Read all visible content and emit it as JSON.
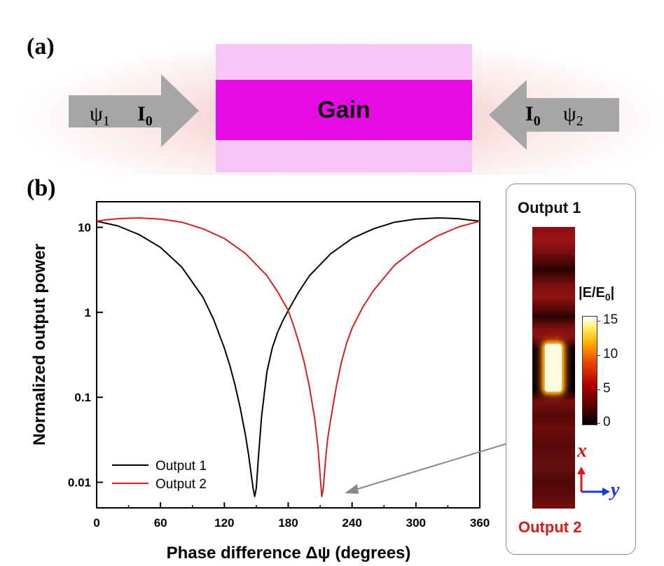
{
  "figure": {
    "panel_a_label": "(a)",
    "panel_b_label": "(b)"
  },
  "schematic": {
    "gain_label": "Gain",
    "left_beam": {
      "phase": "ψ",
      "phase_sub": "1",
      "intensity": "I",
      "intensity_sub": "0"
    },
    "right_beam": {
      "phase": "ψ",
      "phase_sub": "2",
      "intensity": "I",
      "intensity_sub": "0"
    },
    "colors": {
      "core": "#e40be4",
      "cladding": "#f6c4f6",
      "arrow": "#a6a6a6",
      "glow": "#e27878"
    }
  },
  "chart_data": {
    "type": "line",
    "xlabel": "Phase difference Δψ (degrees)",
    "ylabel": "Normalized output power",
    "xlim": [
      0,
      360
    ],
    "ylim": [
      0.005,
      20
    ],
    "yscale": "log",
    "xticks": [
      "0",
      "60",
      "120",
      "180",
      "240",
      "300",
      "360"
    ],
    "yticks": [
      {
        "value": 10,
        "label": "10"
      },
      {
        "value": 1,
        "label": "1"
      },
      {
        "value": 0.1,
        "label": "0.1"
      },
      {
        "value": 0.01,
        "label": "0.01"
      }
    ],
    "grid": false,
    "legend_position": "bottom-left",
    "series": [
      {
        "name": "Output 1",
        "color": "#000000",
        "x": [
          0,
          20,
          40,
          60,
          80,
          100,
          110,
          120,
          125,
          130,
          135,
          140,
          143,
          145,
          147,
          148.5,
          150,
          152,
          155,
          160,
          165,
          170,
          175,
          180,
          190,
          200,
          220,
          240,
          260,
          280,
          300,
          320,
          330,
          340,
          350,
          360
        ],
        "y": [
          11.8,
          10.4,
          8.2,
          5.8,
          3.4,
          1.5,
          0.82,
          0.38,
          0.24,
          0.14,
          0.074,
          0.035,
          0.02,
          0.013,
          0.0085,
          0.0068,
          0.0085,
          0.02,
          0.06,
          0.2,
          0.38,
          0.58,
          0.8,
          1.05,
          1.75,
          2.7,
          4.9,
          7.4,
          9.6,
          11.5,
          12.5,
          12.9,
          12.8,
          12.6,
          12.2,
          11.8
        ]
      },
      {
        "name": "Output 2",
        "color": "#d62020",
        "x": [
          0,
          10,
          20,
          30,
          40,
          60,
          80,
          100,
          120,
          140,
          160,
          170,
          180,
          185,
          190,
          195,
          200,
          205,
          208,
          210,
          211.5,
          213,
          215,
          217,
          220,
          225,
          230,
          235,
          240,
          250,
          260,
          280,
          300,
          320,
          340,
          360
        ],
        "y": [
          11.8,
          12.3,
          12.6,
          12.8,
          12.9,
          12.5,
          11.5,
          9.6,
          7.4,
          4.9,
          2.7,
          1.75,
          1.05,
          0.7,
          0.44,
          0.26,
          0.13,
          0.055,
          0.026,
          0.012,
          0.0068,
          0.0085,
          0.018,
          0.032,
          0.056,
          0.13,
          0.26,
          0.44,
          0.65,
          1.15,
          1.8,
          3.6,
          5.6,
          7.9,
          10.1,
          11.8
        ]
      }
    ]
  },
  "inset": {
    "top_label": "Output 1",
    "bottom_label": "Output 2",
    "colorbar_title": "|E/E",
    "colorbar_title_sub": "0",
    "colorbar_title_end": "|",
    "colorbar_ticks": [
      "15",
      "10",
      "5",
      "0"
    ],
    "axis_x_label": "x",
    "axis_y_label": "y",
    "colors": {
      "top_label": "#111111",
      "bottom_label": "#d61a1a",
      "x_axis": "#d61a1a",
      "y_axis": "#1a3ad6"
    }
  }
}
